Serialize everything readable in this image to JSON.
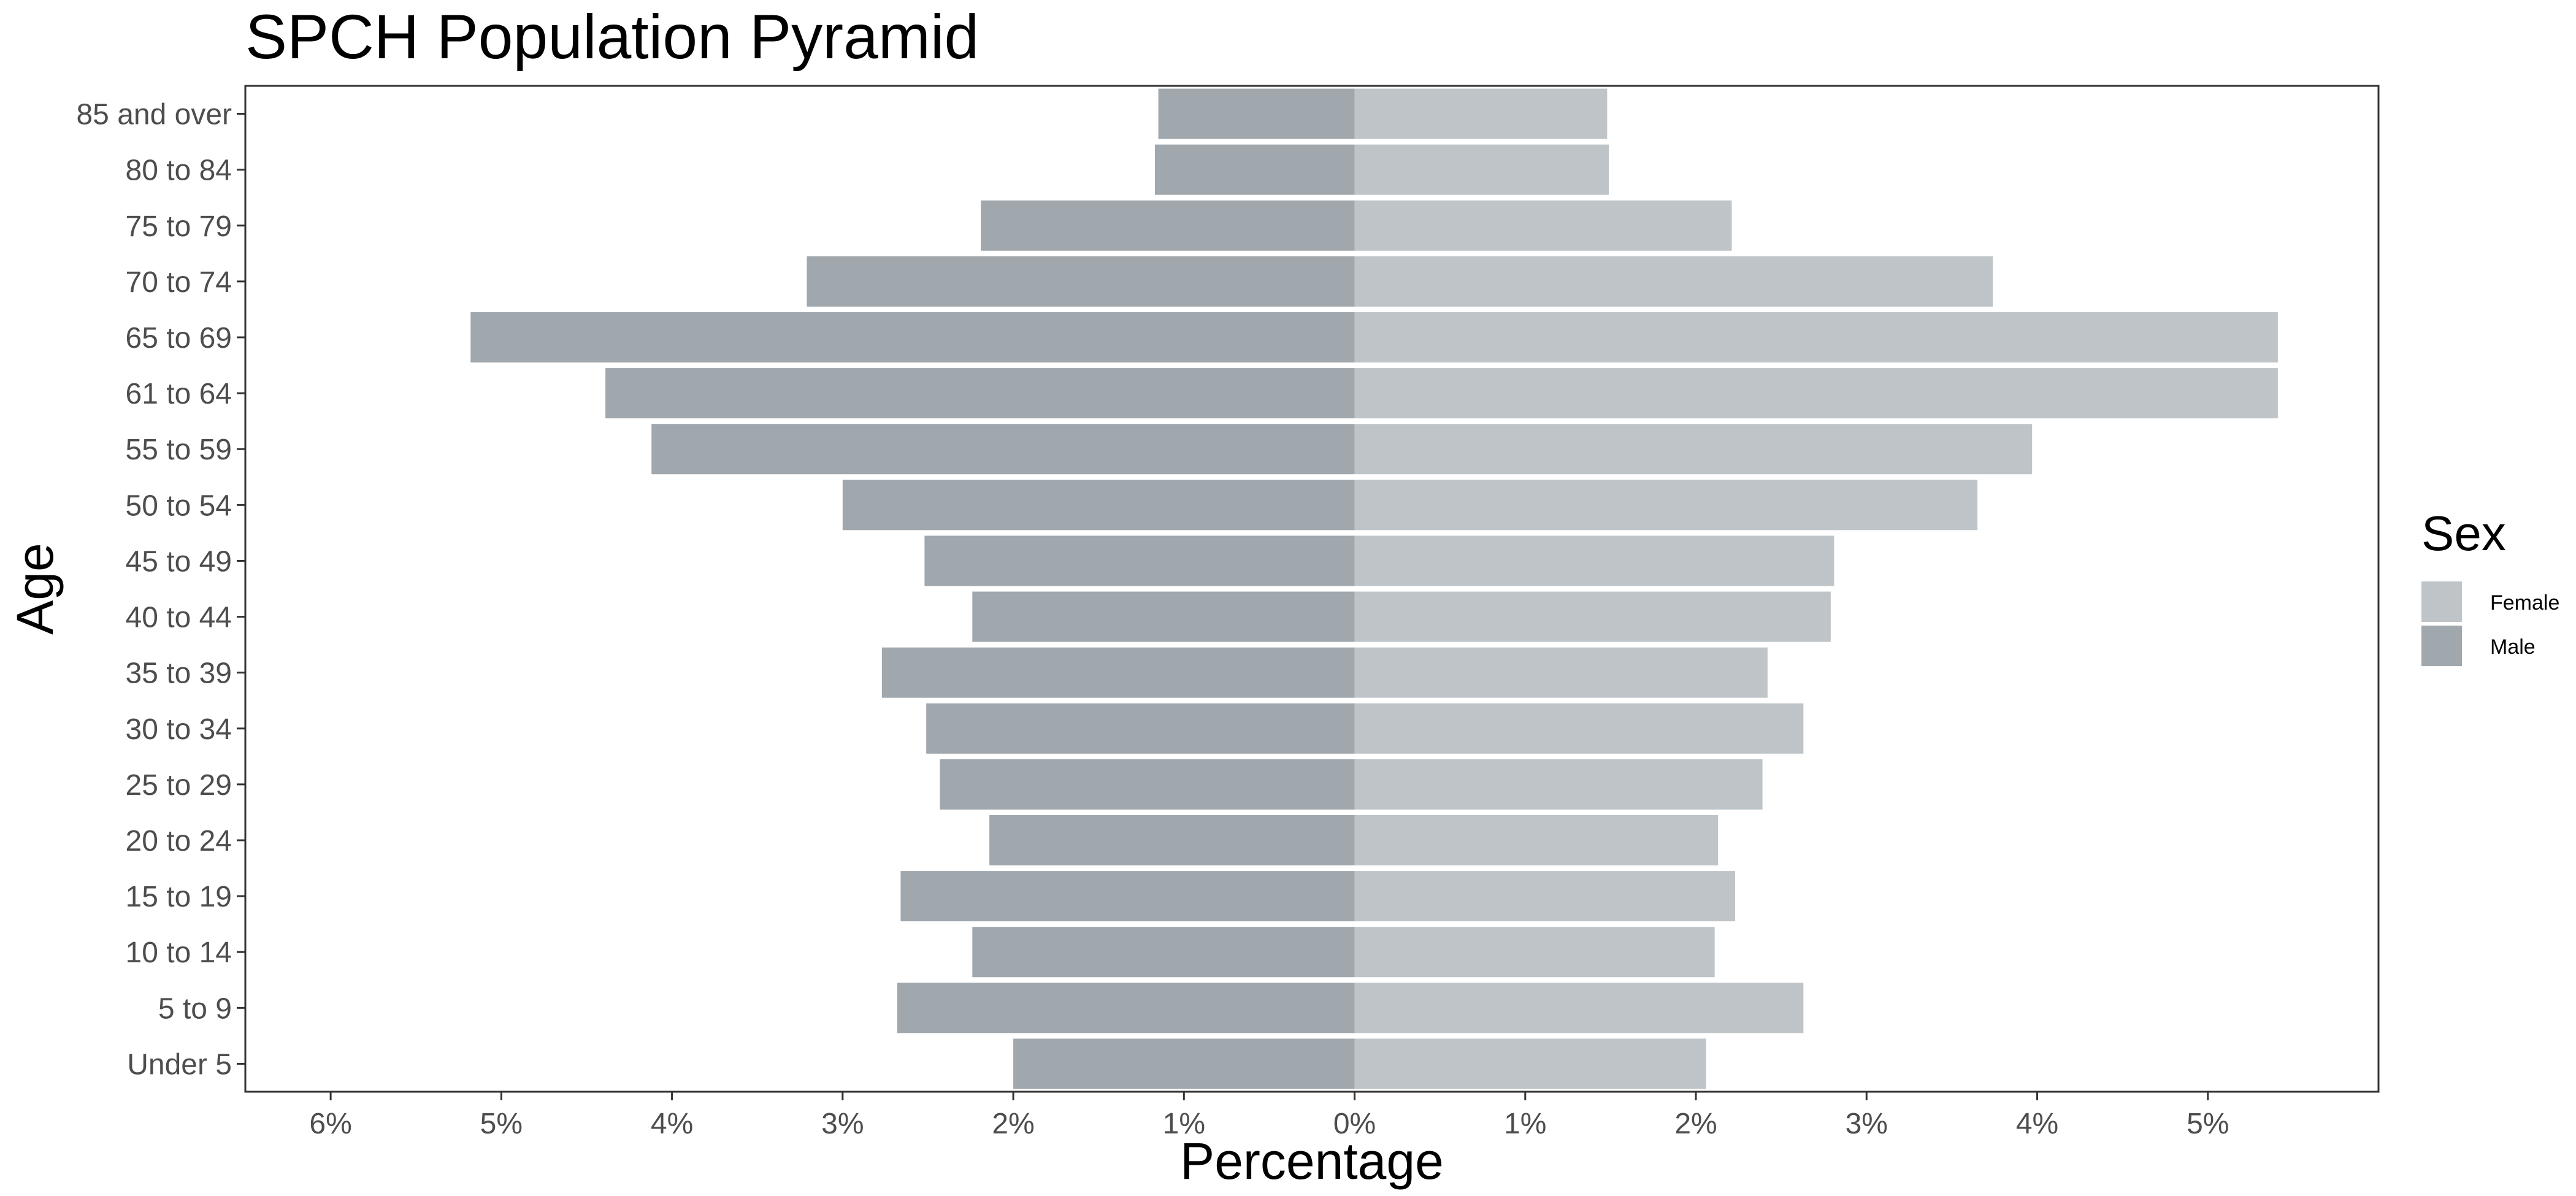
{
  "chart_data": {
    "type": "bar",
    "orientation": "horizontal",
    "title": "SPCH Population Pyramid",
    "xlabel": "Percentage",
    "ylabel": "Age",
    "xlim": [
      -6.5,
      6.0
    ],
    "x_ticks": [
      -6,
      -5,
      -4,
      -3,
      -2,
      -1,
      0,
      1,
      2,
      3,
      4,
      5
    ],
    "x_tick_labels": [
      "6%",
      "5%",
      "4%",
      "3%",
      "2%",
      "1%",
      "0%",
      "1%",
      "2%",
      "3%",
      "4%",
      "5%"
    ],
    "grid": false,
    "categories": [
      "Under 5",
      "5 to 9",
      "10 to 14",
      "15 to 19",
      "20 to 24",
      "25 to 29",
      "30 to 34",
      "35 to 39",
      "40 to 44",
      "45 to 49",
      "50 to 54",
      "55 to 59",
      "61 to 64",
      "65 to 69",
      "70 to 74",
      "75 to 79",
      "80 to 84",
      "85 and over"
    ],
    "series": [
      {
        "name": "Male",
        "color": "#a0a7ad",
        "values": [
          2.0,
          2.68,
          2.24,
          2.66,
          2.14,
          2.43,
          2.51,
          2.77,
          2.24,
          2.52,
          3.0,
          4.12,
          4.39,
          5.18,
          3.21,
          2.19,
          1.17,
          1.15
        ]
      },
      {
        "name": "Female",
        "color": "#bec4c7",
        "values": [
          2.06,
          2.63,
          2.11,
          2.23,
          2.13,
          2.39,
          2.63,
          2.42,
          2.79,
          2.81,
          3.65,
          3.97,
          5.41,
          5.41,
          3.74,
          2.21,
          1.49,
          1.48
        ]
      }
    ],
    "legend": {
      "title": "Sex",
      "position": "right",
      "entries": [
        "Female",
        "Male"
      ]
    }
  }
}
